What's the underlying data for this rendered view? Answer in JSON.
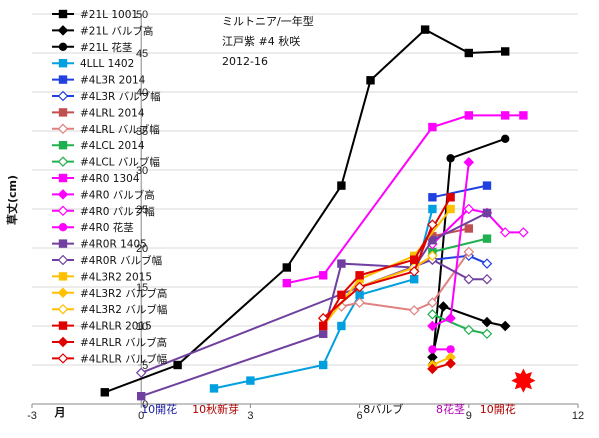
{
  "chart_data": {
    "type": "line",
    "title_lines": [
      "ミルトニア/一年型",
      "江戸紫  #4 秋咲",
      "2012-16"
    ],
    "ylabel": "草丈(cm)",
    "xlabel": "月",
    "xlim": [
      -3,
      12
    ],
    "ylim": [
      0,
      50
    ],
    "xticks": [
      -3,
      0,
      3,
      6,
      9,
      12
    ],
    "yticks": [
      0,
      5,
      10,
      15,
      20,
      25,
      30,
      35,
      40,
      45,
      50
    ],
    "grid": "horizontal",
    "legend_position": "top-left",
    "annotations": [
      {
        "text": "10開花",
        "color": "#1a1aa0",
        "x": 0
      },
      {
        "text": "10秋新芽",
        "color": "#b00000",
        "x": 1.4
      },
      {
        "text": "8バルブ",
        "color": "#111111",
        "x": 6.1
      },
      {
        "text": "8花茎",
        "color": "#b000b0",
        "x": 8.1
      },
      {
        "text": "10開花",
        "color": "#b00000",
        "x": 9.3
      }
    ],
    "star": {
      "x": 10.5,
      "y": 3,
      "color": "#ff0000"
    },
    "series": [
      {
        "name": "#21L 1001",
        "color": "#000000",
        "marker": "square",
        "filled": true,
        "points": [
          [
            -1,
            1.5
          ],
          [
            1,
            5
          ],
          [
            4,
            17.5
          ],
          [
            5.5,
            28
          ],
          [
            6.3,
            41.5
          ],
          [
            7.8,
            48
          ],
          [
            9,
            45
          ],
          [
            10,
            45.2
          ]
        ]
      },
      {
        "name": "#21L バルブ高",
        "color": "#000000",
        "marker": "diamond",
        "filled": true,
        "points": [
          [
            8,
            6
          ],
          [
            8.3,
            12.5
          ],
          [
            9.5,
            10.5
          ],
          [
            10,
            10
          ]
        ]
      },
      {
        "name": "#21L 花茎",
        "color": "#000000",
        "marker": "circle",
        "filled": true,
        "points": [
          [
            8,
            5
          ],
          [
            8.5,
            31.5
          ],
          [
            10,
            34
          ]
        ]
      },
      {
        "name": "4LLL 1402",
        "color": "#00a0e0",
        "marker": "square",
        "filled": true,
        "points": [
          [
            2,
            2
          ],
          [
            3,
            3
          ],
          [
            5,
            5
          ],
          [
            5.5,
            10
          ],
          [
            6,
            14
          ],
          [
            7.5,
            16
          ],
          [
            8,
            25
          ]
        ]
      },
      {
        "name": "#4L3R 2014",
        "color": "#2040e0",
        "marker": "square",
        "filled": true,
        "points": [
          [
            8,
            26.5
          ],
          [
            9.5,
            28
          ]
        ]
      },
      {
        "name": "#4L3R バルブ幅",
        "color": "#2040e0",
        "marker": "diamond",
        "filled": false,
        "points": [
          [
            8,
            18.5
          ],
          [
            9,
            19
          ],
          [
            9.5,
            18
          ]
        ]
      },
      {
        "name": "#4LRL 2014",
        "color": "#c05050",
        "marker": "square",
        "filled": true,
        "points": [
          [
            8,
            21.5
          ],
          [
            9,
            22.5
          ]
        ]
      },
      {
        "name": "#4LRL バルブ幅",
        "color": "#e08080",
        "marker": "diamond",
        "filled": false,
        "points": [
          [
            5.5,
            12.5
          ],
          [
            6,
            13
          ],
          [
            7.5,
            12
          ],
          [
            8,
            13
          ],
          [
            9,
            19.5
          ]
        ]
      },
      {
        "name": "#4LCL 2014",
        "color": "#20b050",
        "marker": "square",
        "filled": true,
        "points": [
          [
            8,
            19.5
          ],
          [
            9.5,
            21.2
          ]
        ]
      },
      {
        "name": "#4LCL バルブ幅",
        "color": "#20b050",
        "marker": "diamond",
        "filled": false,
        "points": [
          [
            8,
            11.5
          ],
          [
            9,
            9.5
          ],
          [
            9.5,
            9
          ]
        ]
      },
      {
        "name": "#4R0 1304",
        "color": "#ff00ff",
        "marker": "square",
        "filled": true,
        "points": [
          [
            4,
            15.5
          ],
          [
            5,
            16.5
          ],
          [
            8,
            35.5
          ],
          [
            9,
            37
          ],
          [
            10,
            37
          ],
          [
            10.5,
            37
          ]
        ]
      },
      {
        "name": "#4R0 バルブ高",
        "color": "#ff00ff",
        "marker": "diamond",
        "filled": true,
        "points": [
          [
            8,
            10
          ],
          [
            8.5,
            11
          ],
          [
            9,
            31
          ]
        ]
      },
      {
        "name": "#4R0 バルブ幅",
        "color": "#ff00ff",
        "marker": "diamond",
        "filled": false,
        "points": [
          [
            8,
            20.5
          ],
          [
            9,
            25
          ],
          [
            9.5,
            24.5
          ],
          [
            10,
            22
          ],
          [
            10.5,
            22
          ]
        ]
      },
      {
        "name": "#4R0 花茎",
        "color": "#ff00ff",
        "marker": "circle",
        "filled": true,
        "points": [
          [
            8,
            7
          ],
          [
            8.5,
            7
          ]
        ]
      },
      {
        "name": "#4R0R 1405",
        "color": "#7040a0",
        "marker": "square",
        "filled": true,
        "points": [
          [
            0,
            1
          ],
          [
            5,
            9
          ],
          [
            5.5,
            18
          ],
          [
            7.5,
            17.5
          ],
          [
            8,
            21
          ],
          [
            9.5,
            24.5
          ]
        ]
      },
      {
        "name": "#4R0R バルブ幅",
        "color": "#7040a0",
        "marker": "diamond",
        "filled": false,
        "points": [
          [
            0,
            4
          ],
          [
            6,
            15
          ],
          [
            8,
            18.5
          ],
          [
            9,
            16
          ],
          [
            9.5,
            16
          ]
        ]
      },
      {
        "name": "#4L3R2 2015",
        "color": "#ffc000",
        "marker": "square",
        "filled": true,
        "points": [
          [
            5,
            10
          ],
          [
            6,
            16
          ],
          [
            7.5,
            19
          ],
          [
            8.5,
            25
          ]
        ]
      },
      {
        "name": "#4L3R2 バルブ高",
        "color": "#ffc000",
        "marker": "diamond",
        "filled": true,
        "points": [
          [
            8,
            5
          ],
          [
            8.5,
            6
          ]
        ]
      },
      {
        "name": "#4L3R2 バルブ幅",
        "color": "#ffc000",
        "marker": "diamond",
        "filled": false,
        "points": [
          [
            5,
            11
          ],
          [
            6,
            15
          ],
          [
            7.5,
            17.5
          ],
          [
            8,
            19
          ]
        ]
      },
      {
        "name": "#4LRLR 2015",
        "color": "#e00000",
        "marker": "square",
        "filled": true,
        "points": [
          [
            5,
            10
          ],
          [
            5.5,
            14
          ],
          [
            6,
            16.5
          ],
          [
            7.5,
            18.5
          ],
          [
            8.5,
            26.5
          ]
        ]
      },
      {
        "name": "#4LRLR バルブ高",
        "color": "#e00000",
        "marker": "diamond",
        "filled": true,
        "points": [
          [
            8,
            4.5
          ],
          [
            8.5,
            5.2
          ]
        ]
      },
      {
        "name": "#4LRLR バルブ幅",
        "color": "#e00000",
        "marker": "diamond",
        "filled": false,
        "points": [
          [
            5,
            11
          ],
          [
            6,
            15
          ],
          [
            7.5,
            17
          ],
          [
            8,
            23
          ]
        ]
      }
    ]
  }
}
